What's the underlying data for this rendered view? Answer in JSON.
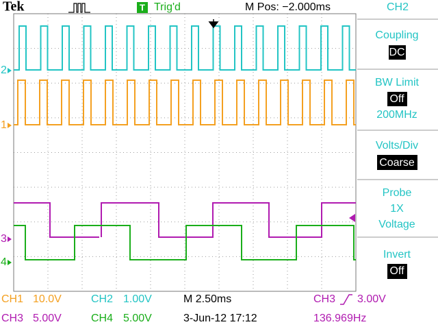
{
  "header": {
    "brand": "Tek",
    "trigger_badge": "T",
    "trigger_status": "Trig'd",
    "position": "M Pos: −2.000ms"
  },
  "markers": [
    "2",
    "1",
    "3",
    "4"
  ],
  "menu": {
    "title": "CH2",
    "items": [
      {
        "label": "Coupling",
        "value": "DC"
      },
      {
        "label": "BW Limit",
        "value": "Off",
        "extra": "200MHz"
      },
      {
        "label": "Volts/Div",
        "value": "Coarse"
      },
      {
        "label": "Probe",
        "value": "1X",
        "extra": "Voltage"
      },
      {
        "label": "Invert",
        "value": "Off"
      }
    ]
  },
  "status": {
    "ch1": {
      "name": "CH1",
      "scale": "10.0V"
    },
    "ch2": {
      "name": "CH2",
      "scale": "1.00V"
    },
    "ch3": {
      "name": "CH3",
      "scale": "5.00V"
    },
    "ch4": {
      "name": "CH4",
      "scale": "5.00V"
    },
    "timebase": "M 2.50ms",
    "trigger": {
      "source": "CH3",
      "level": "3.00V"
    },
    "datetime": "3-Jun-12 17:12",
    "frequency": "136.969Hz"
  }
}
